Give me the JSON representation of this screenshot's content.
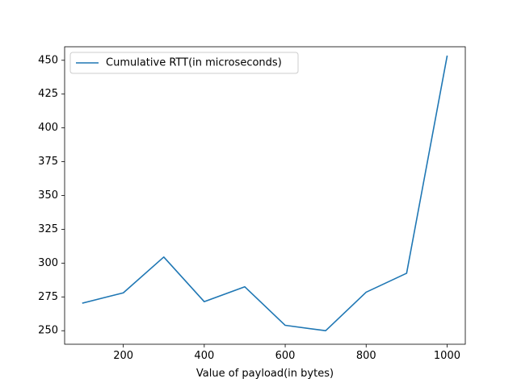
{
  "chart_data": {
    "type": "line",
    "title": "",
    "xlabel": "Value of payload(in bytes)",
    "ylabel": "",
    "xlim": [
      55,
      1045
    ],
    "ylim": [
      240,
      460
    ],
    "xticks": [
      200,
      400,
      600,
      800,
      1000
    ],
    "yticks": [
      250,
      275,
      300,
      325,
      350,
      375,
      400,
      425,
      450
    ],
    "grid": false,
    "legend_position": "upper-left",
    "series": [
      {
        "name": "Cumulative RTT(in microseconds)",
        "color": "#1f77b4",
        "x": [
          100,
          200,
          300,
          400,
          500,
          600,
          700,
          800,
          900,
          1000
        ],
        "y": [
          270.5,
          278,
          304.5,
          271.5,
          282.5,
          254,
          250,
          278.5,
          292.5,
          453
        ]
      }
    ]
  }
}
